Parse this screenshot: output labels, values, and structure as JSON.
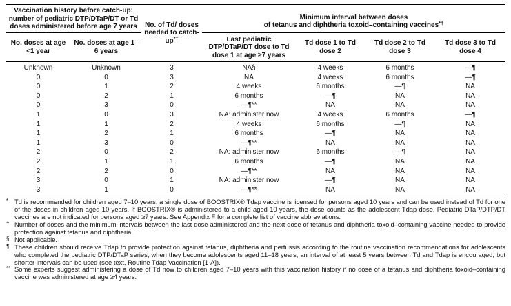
{
  "table": {
    "group_left": "Vaccination history before catch-up: number of pediatric DTP/DTaP/DT or Td doses administered before age 7 years",
    "group_right": {
      "line1": "Minimum interval between doses",
      "line2": "of tetanus and diphtheria toxoid–containing vaccines",
      "sup": "*†"
    },
    "col_mid": {
      "text": "No. of Td/ doses needed to catch-up",
      "sup": "*†"
    },
    "columns": [
      "No. doses at age <1 year",
      "No. doses at age 1–6 years",
      "Last pediatric DTP/DTaP/DT dose to Td dose 1 at age ≥7 years",
      "Td dose 1 to Td dose 2",
      "Td dose 2 to Td dose 3",
      "Td dose 3 to Td dose 4"
    ],
    "rows": [
      [
        "Unknown",
        "Unknown",
        "3",
        "NA§",
        "4 weeks",
        "6 months",
        "—¶"
      ],
      [
        "0",
        "0",
        "3",
        "NA",
        "4 weeks",
        "6 months",
        "—¶"
      ],
      [
        "0",
        "1",
        "2",
        "4 weeks",
        "6 months",
        "—¶",
        "NA"
      ],
      [
        "0",
        "2",
        "1",
        "6 months",
        "—¶",
        "NA",
        "NA"
      ],
      [
        "0",
        "3",
        "0",
        "—¶**",
        "NA",
        "NA",
        "NA"
      ],
      [
        "1",
        "0",
        "3",
        "NA: administer now",
        "4 weeks",
        "6 months",
        "—¶"
      ],
      [
        "1",
        "1",
        "2",
        "4 weeks",
        "6 months",
        "—¶",
        "NA"
      ],
      [
        "1",
        "2",
        "1",
        "6 months",
        "—¶",
        "NA",
        "NA"
      ],
      [
        "1",
        "3",
        "0",
        "—¶**",
        "NA",
        "NA",
        "NA"
      ],
      [
        "2",
        "0",
        "2",
        "NA: administer now",
        "6 months",
        "—¶",
        "NA"
      ],
      [
        "2",
        "1",
        "1",
        "6 months",
        "—¶",
        "NA",
        "NA"
      ],
      [
        "2",
        "2",
        "0",
        "—¶**",
        "NA",
        "NA",
        "NA"
      ],
      [
        "3",
        "0",
        "1",
        "NA: administer now",
        "—¶",
        "NA",
        "NA"
      ],
      [
        "3",
        "1",
        "0",
        "—¶**",
        "NA",
        "NA",
        "NA"
      ]
    ]
  },
  "footnotes": [
    {
      "marker": "*",
      "text": "Td is recommended for children aged 7–10 years; a single dose of BOOSTRIX® Tdap vaccine is licensed for persons aged 10 years and can be used instead of Td for one of the doses in children aged 10 years. If BOOSTRIX® is administered to a child aged 10 years, the dose counts as the adolescent Tdap dose. Pediatric DTaP/DTP/DT vaccines are not indicated for persons aged ≥7 years. See Appendix F for a complete list of vaccine abbreviations."
    },
    {
      "marker": "†",
      "text": "Number of doses and the minimum intervals between the last dose administered and the next dose of tetanus and diphtheria toxoid–containing vaccine needed to provide protection against tetanus and diphtheria."
    },
    {
      "marker": "§",
      "text": "Not applicable."
    },
    {
      "marker": "¶",
      "text": "These children should receive Tdap to provide protection against tetanus, diphtheria and pertussis according to the routine vaccination recommendations for adolescents who completed the pediatric DTP/DTaP series, when they become adolescents aged 11–18 years; an interval of at least 5 years between Td and Tdap is encouraged, but shorter intervals can be used (see text, Routine Tdap Vaccination [1-A])."
    },
    {
      "marker": "**",
      "text": "Some experts suggest administering a dose of Td now to children aged 7–10 years with this vaccination history if no dose of a tetanus and diphtheria toxoid–containing vaccine was administered at age ≥4 years."
    }
  ]
}
